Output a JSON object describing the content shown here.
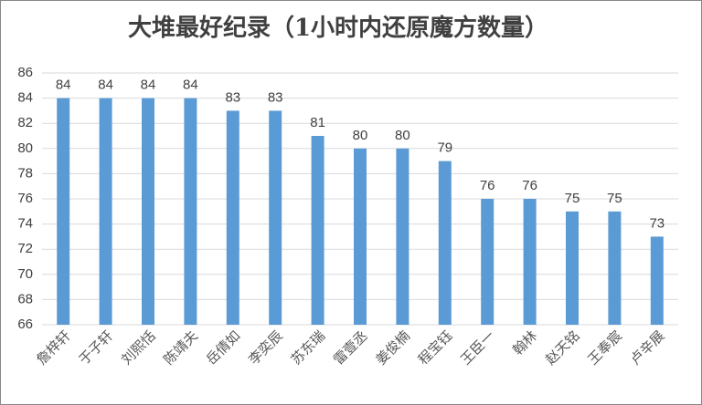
{
  "chart_data": {
    "type": "bar",
    "title": "大堆最好纪录（1小时内还原魔方数量）",
    "categories": [
      "詹梓轩",
      "于子轩",
      "刘熙恬",
      "陈靖夫",
      "岳倩如",
      "李奕辰",
      "苏东瑞",
      "雷壹丞",
      "姜俊楠",
      "程宝钰",
      "王臣一",
      "翰林",
      "赵天铭",
      "王奉宸",
      "卢辛展"
    ],
    "values": [
      84,
      84,
      84,
      84,
      83,
      83,
      81,
      80,
      80,
      79,
      76,
      76,
      75,
      75,
      73
    ],
    "color": "#5b9bd5",
    "ylim": [
      66,
      86
    ],
    "yticks": [
      66,
      68,
      70,
      72,
      74,
      76,
      78,
      80,
      82,
      84,
      86
    ],
    "grid": true
  }
}
